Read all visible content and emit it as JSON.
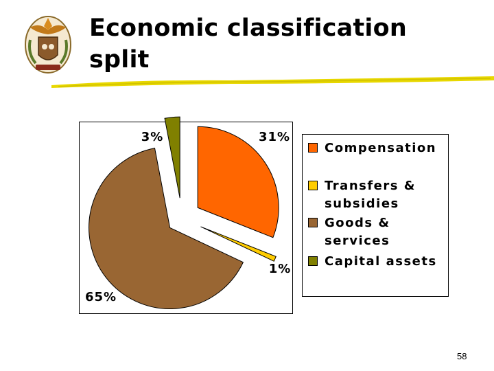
{
  "slide": {
    "title_line1": "Economic classification",
    "title_line2": "split",
    "page_number": "58"
  },
  "colors": {
    "compensation": "#FF6600",
    "transfers": "#FFCC00",
    "goods": "#996633",
    "capital": "#808000",
    "underline": "#E8D800"
  },
  "chart_data": {
    "type": "pie",
    "style": "exploded 3D-like pie",
    "legend_placement": "right",
    "slices": [
      {
        "label": "Compensation",
        "value": 31,
        "display": "31%",
        "color": "#FF6600"
      },
      {
        "label": "Transfers & subsidies",
        "value": 1,
        "display": "1%",
        "color": "#FFCC00"
      },
      {
        "label": "Goods & services",
        "value": 65,
        "display": "65%",
        "color": "#996633"
      },
      {
        "label": "Capital assets",
        "value": 3,
        "display": "3%",
        "color": "#808000"
      }
    ]
  },
  "legend": {
    "items": [
      {
        "text": "Compensation",
        "icon": "orange-swatch"
      },
      {
        "text": "Transfers & subsidies",
        "icon": "yellow-swatch"
      },
      {
        "text": "Goods & services",
        "icon": "brown-swatch"
      },
      {
        "text": "Capital assets",
        "icon": "olive-swatch"
      }
    ]
  },
  "logo": {
    "icon": "coat-of-arms-icon"
  }
}
